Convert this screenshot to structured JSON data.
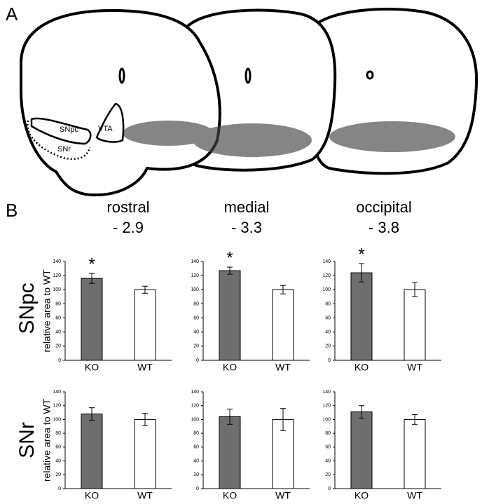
{
  "figure": {
    "panel_a": "A",
    "panel_b": "B",
    "region_labels": [
      "SNpc",
      "VTA",
      "SNr"
    ],
    "columns": [
      {
        "name": "rostral",
        "position": "- 2.9"
      },
      {
        "name": "medial",
        "position": "- 3.3"
      },
      {
        "name": "occipital",
        "position": "- 3.8"
      }
    ],
    "rows": [
      "SNpc",
      "SNr"
    ]
  },
  "chart_data": [
    {
      "type": "bar",
      "ylabel": "relative area to WT",
      "categories": [
        "KO",
        "WT"
      ],
      "values": [
        116,
        100
      ],
      "errors": [
        7,
        5
      ],
      "significance": [
        "*",
        null
      ],
      "colors": [
        "#6e6e6e",
        "#ffffff"
      ],
      "ylim": [
        0,
        140
      ],
      "yticks": [
        0,
        20,
        40,
        60,
        80,
        100,
        120,
        140
      ]
    },
    {
      "type": "bar",
      "categories": [
        "KO",
        "WT"
      ],
      "values": [
        127,
        100
      ],
      "errors": [
        5,
        6
      ],
      "significance": [
        "*",
        null
      ],
      "colors": [
        "#6e6e6e",
        "#ffffff"
      ],
      "ylim": [
        0,
        140
      ],
      "yticks": [
        0,
        20,
        40,
        60,
        80,
        100,
        120,
        140
      ]
    },
    {
      "type": "bar",
      "categories": [
        "KO",
        "WT"
      ],
      "values": [
        124,
        100
      ],
      "errors": [
        13,
        10
      ],
      "significance": [
        "*",
        null
      ],
      "colors": [
        "#6e6e6e",
        "#ffffff"
      ],
      "ylim": [
        0,
        140
      ],
      "yticks": [
        0,
        20,
        40,
        60,
        80,
        100,
        120,
        140
      ]
    },
    {
      "type": "bar",
      "ylabel": "relative area to WT",
      "categories": [
        "KO",
        "WT"
      ],
      "values": [
        108,
        100
      ],
      "errors": [
        9,
        9
      ],
      "colors": [
        "#6e6e6e",
        "#ffffff"
      ],
      "ylim": [
        0,
        140
      ],
      "yticks": [
        0,
        20,
        40,
        60,
        80,
        100,
        120,
        140
      ]
    },
    {
      "type": "bar",
      "categories": [
        "KO",
        "WT"
      ],
      "values": [
        104,
        100
      ],
      "errors": [
        11,
        16
      ],
      "colors": [
        "#6e6e6e",
        "#ffffff"
      ],
      "ylim": [
        0,
        140
      ],
      "yticks": [
        0,
        20,
        40,
        60,
        80,
        100,
        120,
        140
      ]
    },
    {
      "type": "bar",
      "categories": [
        "KO",
        "WT"
      ],
      "values": [
        111,
        100
      ],
      "errors": [
        9,
        7
      ],
      "colors": [
        "#6e6e6e",
        "#ffffff"
      ],
      "ylim": [
        0,
        140
      ],
      "yticks": [
        0,
        20,
        40,
        60,
        80,
        100,
        120,
        140
      ]
    }
  ]
}
